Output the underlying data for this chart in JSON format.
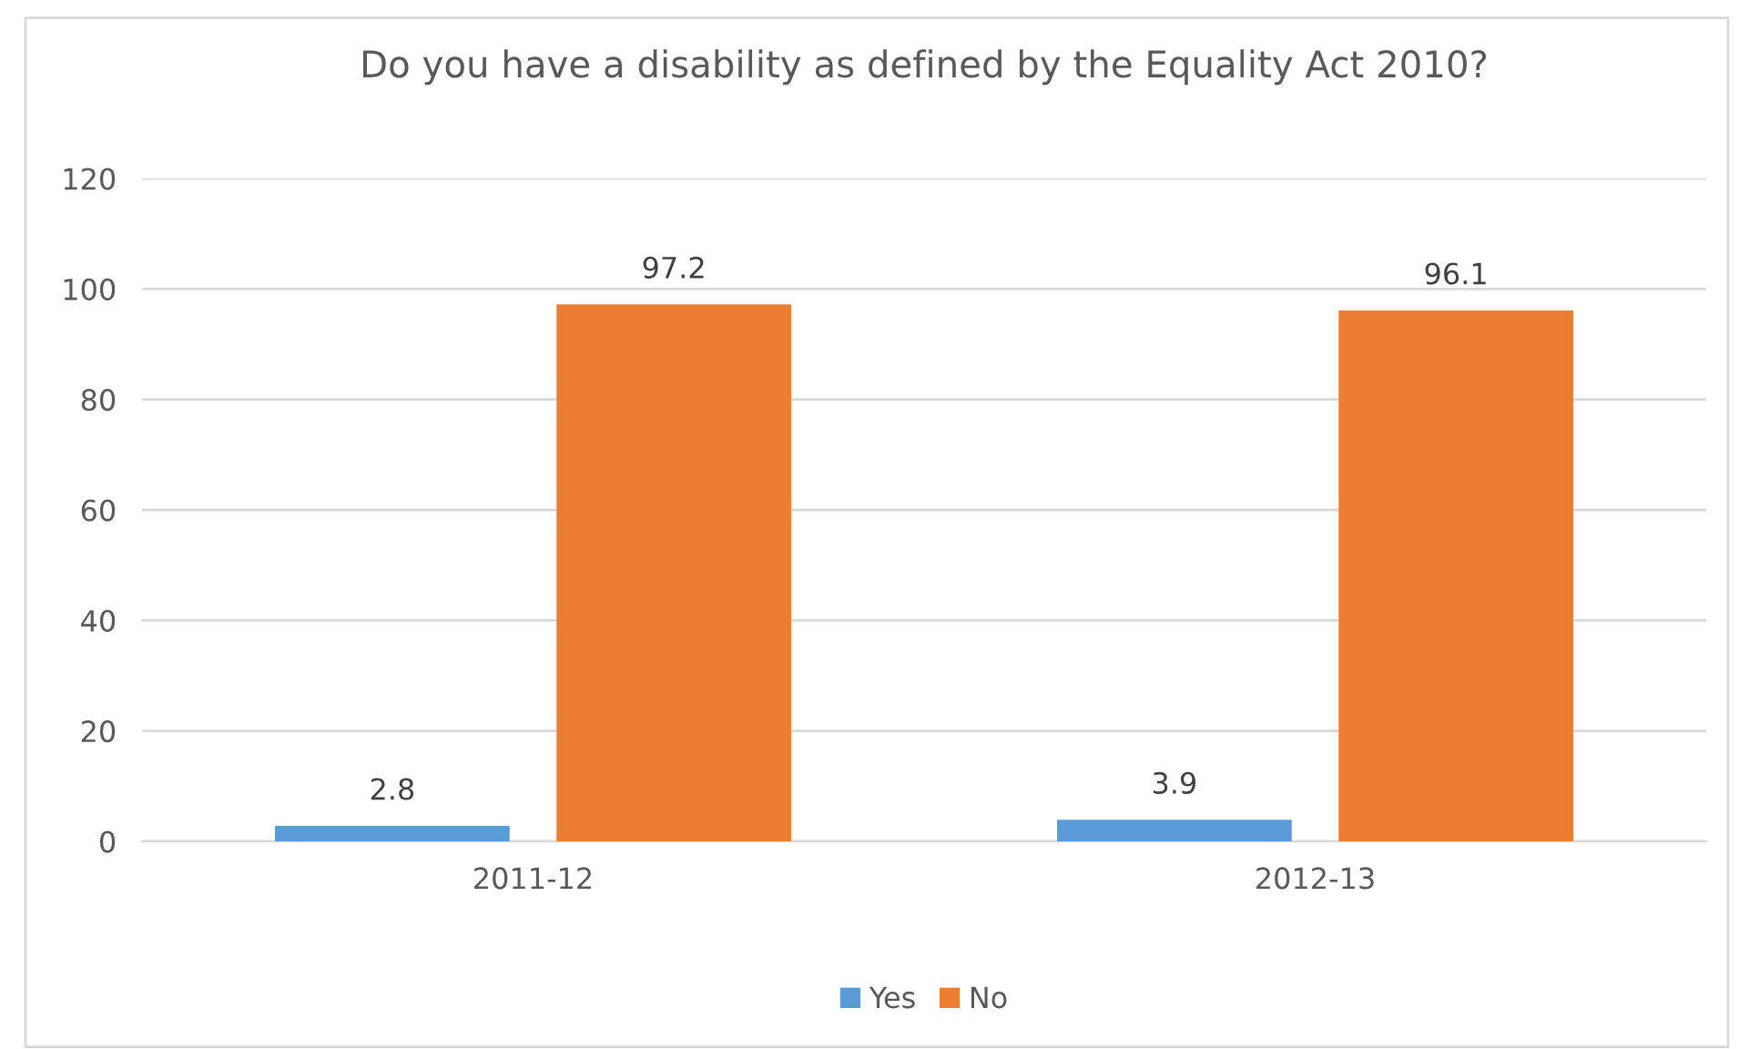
{
  "chart_data": {
    "type": "bar",
    "title": "Do you have a disability as defined by the Equality Act 2010?",
    "categories": [
      "2011-12",
      "2012-13"
    ],
    "series": [
      {
        "name": "Yes",
        "color": "#5b9bd5",
        "values": [
          2.8,
          3.9
        ]
      },
      {
        "name": "No",
        "color": "#ed7d31",
        "values": [
          97.2,
          96.1
        ]
      }
    ],
    "ylim": [
      0,
      120
    ],
    "yticks": [
      0,
      20,
      40,
      60,
      80,
      100,
      120
    ],
    "grid": "y",
    "data_labels": true,
    "legend": "bottom"
  }
}
